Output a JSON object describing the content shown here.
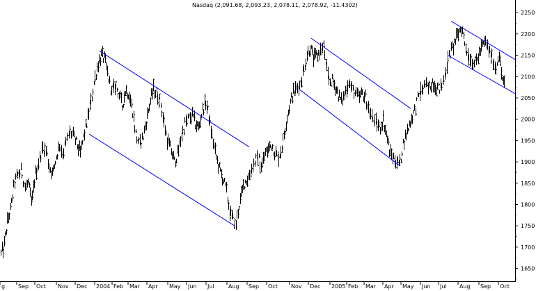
{
  "chart_data": {
    "type": "line",
    "title": "Nasdaq (2,091.68, 2,093.23, 2,078.11, 2,078.92, -11.4302)",
    "ylim": [
      1620,
      2260
    ],
    "grid": false,
    "y_ticks": [
      "2250",
      "2200",
      "2150",
      "2100",
      "2050",
      "2000",
      "1950",
      "1900",
      "1850",
      "1800",
      "1750",
      "1700",
      "1650"
    ],
    "x_ticks": [
      "g",
      "Sep",
      "Oct",
      "Nov",
      "Dec",
      "2004",
      "Feb",
      "Mar",
      "Apr",
      "May",
      "Jun",
      "Jul",
      "Aug",
      "Sep",
      "Oct",
      "Nov",
      "Dec",
      "2005",
      "Feb",
      "Mar",
      "Apr",
      "May",
      "Jun",
      "Jul",
      "Aug",
      "Sep",
      "Oct"
    ],
    "price_path": [
      [
        0,
        1680
      ],
      [
        5,
        1700
      ],
      [
        10,
        1760
      ],
      [
        15,
        1790
      ],
      [
        20,
        1850
      ],
      [
        25,
        1870
      ],
      [
        30,
        1880
      ],
      [
        35,
        1840
      ],
      [
        40,
        1850
      ],
      [
        45,
        1800
      ],
      [
        50,
        1870
      ],
      [
        55,
        1900
      ],
      [
        60,
        1930
      ],
      [
        65,
        1930
      ],
      [
        70,
        1890
      ],
      [
        75,
        1870
      ],
      [
        80,
        1910
      ],
      [
        85,
        1940
      ],
      [
        90,
        1920
      ],
      [
        95,
        1950
      ],
      [
        100,
        1970
      ],
      [
        105,
        1960
      ],
      [
        110,
        1940
      ],
      [
        115,
        1920
      ],
      [
        120,
        1960
      ],
      [
        125,
        2000
      ],
      [
        130,
        2040
      ],
      [
        135,
        2090
      ],
      [
        140,
        2130
      ],
      [
        145,
        2150
      ],
      [
        150,
        2140
      ],
      [
        155,
        2100
      ],
      [
        160,
        2060
      ],
      [
        165,
        2080
      ],
      [
        170,
        2060
      ],
      [
        175,
        2030
      ],
      [
        180,
        2070
      ],
      [
        185,
        2060
      ],
      [
        190,
        2020
      ],
      [
        195,
        1960
      ],
      [
        200,
        1940
      ],
      [
        205,
        1960
      ],
      [
        210,
        2000
      ],
      [
        215,
        2040
      ],
      [
        220,
        2070
      ],
      [
        225,
        2060
      ],
      [
        230,
        2040
      ],
      [
        235,
        1990
      ],
      [
        240,
        1950
      ],
      [
        245,
        1930
      ],
      [
        250,
        1900
      ],
      [
        255,
        1920
      ],
      [
        260,
        1960
      ],
      [
        265,
        1990
      ],
      [
        270,
        2000
      ],
      [
        275,
        2010
      ],
      [
        280,
        1990
      ],
      [
        285,
        1980
      ],
      [
        290,
        2020
      ],
      [
        295,
        2040
      ],
      [
        300,
        2000
      ],
      [
        305,
        1950
      ],
      [
        310,
        1910
      ],
      [
        315,
        1880
      ],
      [
        320,
        1860
      ],
      [
        325,
        1830
      ],
      [
        330,
        1780
      ],
      [
        335,
        1760
      ],
      [
        338,
        1750
      ],
      [
        342,
        1790
      ],
      [
        346,
        1820
      ],
      [
        350,
        1850
      ],
      [
        355,
        1860
      ],
      [
        360,
        1880
      ],
      [
        365,
        1900
      ],
      [
        370,
        1910
      ],
      [
        375,
        1890
      ],
      [
        380,
        1920
      ],
      [
        385,
        1930
      ],
      [
        390,
        1940
      ],
      [
        395,
        1920
      ],
      [
        400,
        1910
      ],
      [
        405,
        1940
      ],
      [
        410,
        1990
      ],
      [
        415,
        2030
      ],
      [
        420,
        2060
      ],
      [
        425,
        2070
      ],
      [
        430,
        2080
      ],
      [
        435,
        2110
      ],
      [
        440,
        2150
      ],
      [
        445,
        2170
      ],
      [
        450,
        2140
      ],
      [
        455,
        2150
      ],
      [
        460,
        2160
      ],
      [
        465,
        2170
      ],
      [
        468,
        2120
      ],
      [
        472,
        2090
      ],
      [
        476,
        2090
      ],
      [
        480,
        2080
      ],
      [
        485,
        2060
      ],
      [
        490,
        2040
      ],
      [
        495,
        2060
      ],
      [
        500,
        2090
      ],
      [
        505,
        2070
      ],
      [
        510,
        2060
      ],
      [
        515,
        2050
      ],
      [
        520,
        2060
      ],
      [
        525,
        2050
      ],
      [
        530,
        2020
      ],
      [
        535,
        2000
      ],
      [
        540,
        1990
      ],
      [
        545,
        1980
      ],
      [
        550,
        2000
      ],
      [
        555,
        1960
      ],
      [
        560,
        1920
      ],
      [
        565,
        1910
      ],
      [
        570,
        1900
      ],
      [
        574,
        1895
      ],
      [
        578,
        1940
      ],
      [
        582,
        1960
      ],
      [
        586,
        1980
      ],
      [
        590,
        2000
      ],
      [
        595,
        2020
      ],
      [
        600,
        2050
      ],
      [
        605,
        2070
      ],
      [
        610,
        2080
      ],
      [
        615,
        2070
      ],
      [
        620,
        2090
      ],
      [
        625,
        2080
      ],
      [
        630,
        2070
      ],
      [
        635,
        2080
      ],
      [
        640,
        2120
      ],
      [
        645,
        2150
      ],
      [
        650,
        2170
      ],
      [
        655,
        2190
      ],
      [
        660,
        2210
      ],
      [
        663,
        2215
      ],
      [
        667,
        2180
      ],
      [
        672,
        2150
      ],
      [
        677,
        2140
      ],
      [
        682,
        2130
      ],
      [
        687,
        2150
      ],
      [
        692,
        2170
      ],
      [
        697,
        2180
      ],
      [
        702,
        2160
      ],
      [
        707,
        2140
      ],
      [
        712,
        2120
      ],
      [
        716,
        2160
      ],
      [
        720,
        2100
      ],
      [
        724,
        2080
      ]
    ],
    "trend_lines": [
      [
        [
          143,
          2160
        ],
        [
          358,
          1935
        ]
      ],
      [
        [
          128,
          1965
        ],
        [
          337,
          1750
        ]
      ],
      [
        [
          447,
          2190
        ],
        [
          590,
          2025
        ]
      ],
      [
        [
          430,
          2070
        ],
        [
          575,
          1890
        ]
      ],
      [
        [
          648,
          2230
        ],
        [
          740,
          2140
        ]
      ],
      [
        [
          643,
          2150
        ],
        [
          740,
          2060
        ]
      ]
    ]
  }
}
